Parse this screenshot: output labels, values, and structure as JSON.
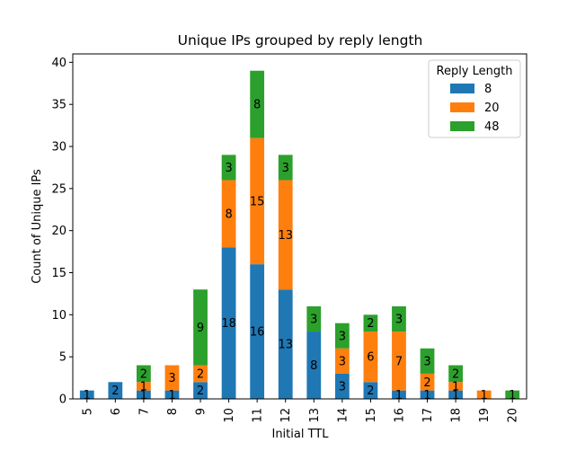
{
  "chart_data": {
    "type": "bar",
    "stacked": true,
    "title": "Unique IPs grouped by reply length",
    "xlabel": "Initial TTL",
    "ylabel": "Count of Unique IPs",
    "ylim": [
      0,
      41
    ],
    "yticks": [
      0,
      5,
      10,
      15,
      20,
      25,
      30,
      35,
      40
    ],
    "categories": [
      "5",
      "6",
      "7",
      "8",
      "9",
      "10",
      "11",
      "12",
      "13",
      "14",
      "15",
      "16",
      "17",
      "18",
      "19",
      "20"
    ],
    "series": [
      {
        "name": "8",
        "color": "#1f77b4",
        "values": [
          1,
          2,
          1,
          1,
          2,
          18,
          16,
          13,
          8,
          3,
          2,
          1,
          1,
          1,
          0,
          0
        ]
      },
      {
        "name": "20",
        "color": "#ff7f0e",
        "values": [
          0,
          0,
          1,
          3,
          2,
          8,
          15,
          13,
          0,
          3,
          6,
          7,
          2,
          1,
          1,
          0
        ]
      },
      {
        "name": "48",
        "color": "#2ca02c",
        "values": [
          0,
          0,
          2,
          0,
          9,
          3,
          8,
          3,
          3,
          3,
          2,
          3,
          3,
          2,
          0,
          1
        ]
      }
    ],
    "legend": {
      "title": "Reply Length",
      "placement": "top-right"
    },
    "grid": false
  }
}
